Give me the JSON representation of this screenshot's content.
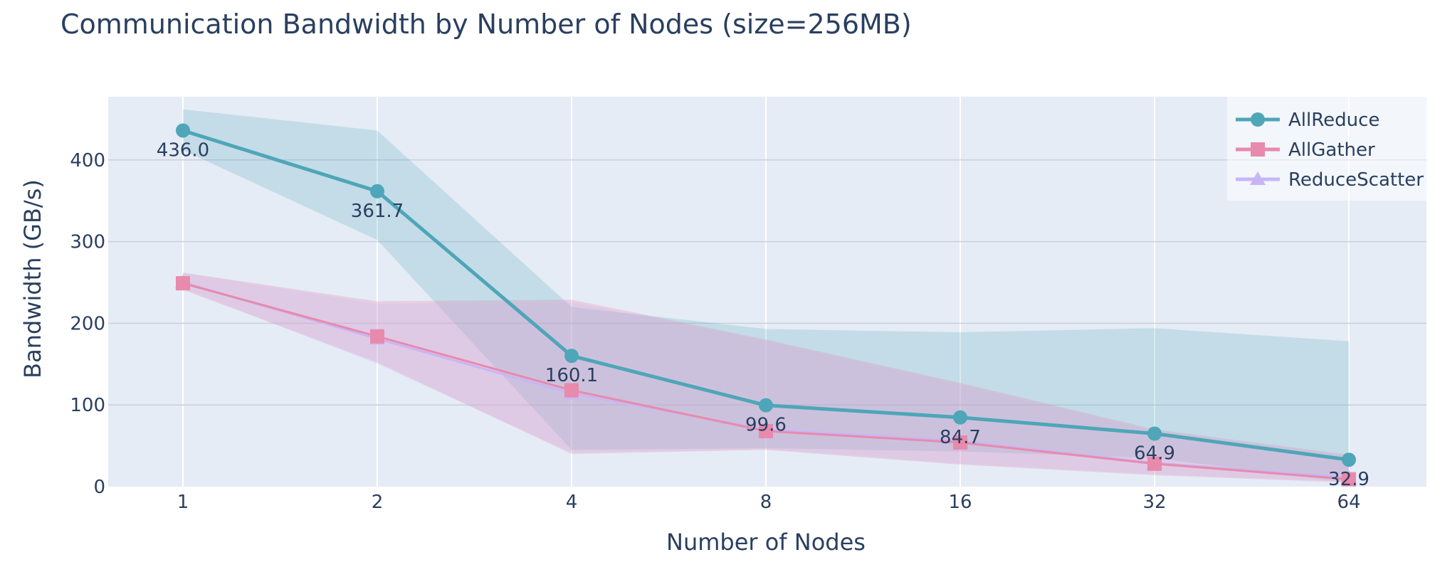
{
  "chart_data": {
    "type": "line",
    "title": "Communication Bandwidth by Number of Nodes (size=256MB)",
    "xlabel": "Number of Nodes",
    "ylabel": "Bandwidth (GB/s)",
    "categories": [
      "1",
      "2",
      "4",
      "8",
      "16",
      "32",
      "64"
    ],
    "ylim": [
      0,
      480
    ],
    "yticks": [
      0,
      100,
      200,
      300,
      400
    ],
    "grid": true,
    "legend_position": "top-right",
    "series": [
      {
        "name": "AllReduce",
        "color": "#4ea6b8",
        "marker": "circle",
        "values": [
          436.0,
          361.7,
          160.1,
          99.6,
          84.7,
          64.9,
          32.9
        ],
        "labels": [
          "436.0",
          "361.7",
          "160.1",
          "99.6",
          "84.7",
          "64.9",
          "32.9"
        ],
        "upper": [
          462,
          436,
          220,
          193,
          189,
          194,
          178
        ],
        "lower": [
          412,
          302,
          45,
          47,
          43,
          35,
          5
        ]
      },
      {
        "name": "AllGather",
        "color": "#e88aab",
        "marker": "square",
        "values": [
          249,
          184,
          118,
          68,
          54,
          28,
          9
        ],
        "upper": [
          262,
          227,
          229,
          180,
          127,
          70,
          39
        ],
        "lower": [
          241,
          152,
          40,
          45,
          27,
          14,
          5
        ]
      },
      {
        "name": "ReduceScatter",
        "color": "#c9b5f5",
        "marker": "triangle-up",
        "values": [
          250,
          181,
          114,
          70,
          56,
          29,
          11
        ],
        "upper": [
          262,
          224,
          226,
          178,
          125,
          68,
          37
        ],
        "lower": [
          243,
          150,
          42,
          46,
          28,
          15,
          6
        ]
      }
    ]
  }
}
